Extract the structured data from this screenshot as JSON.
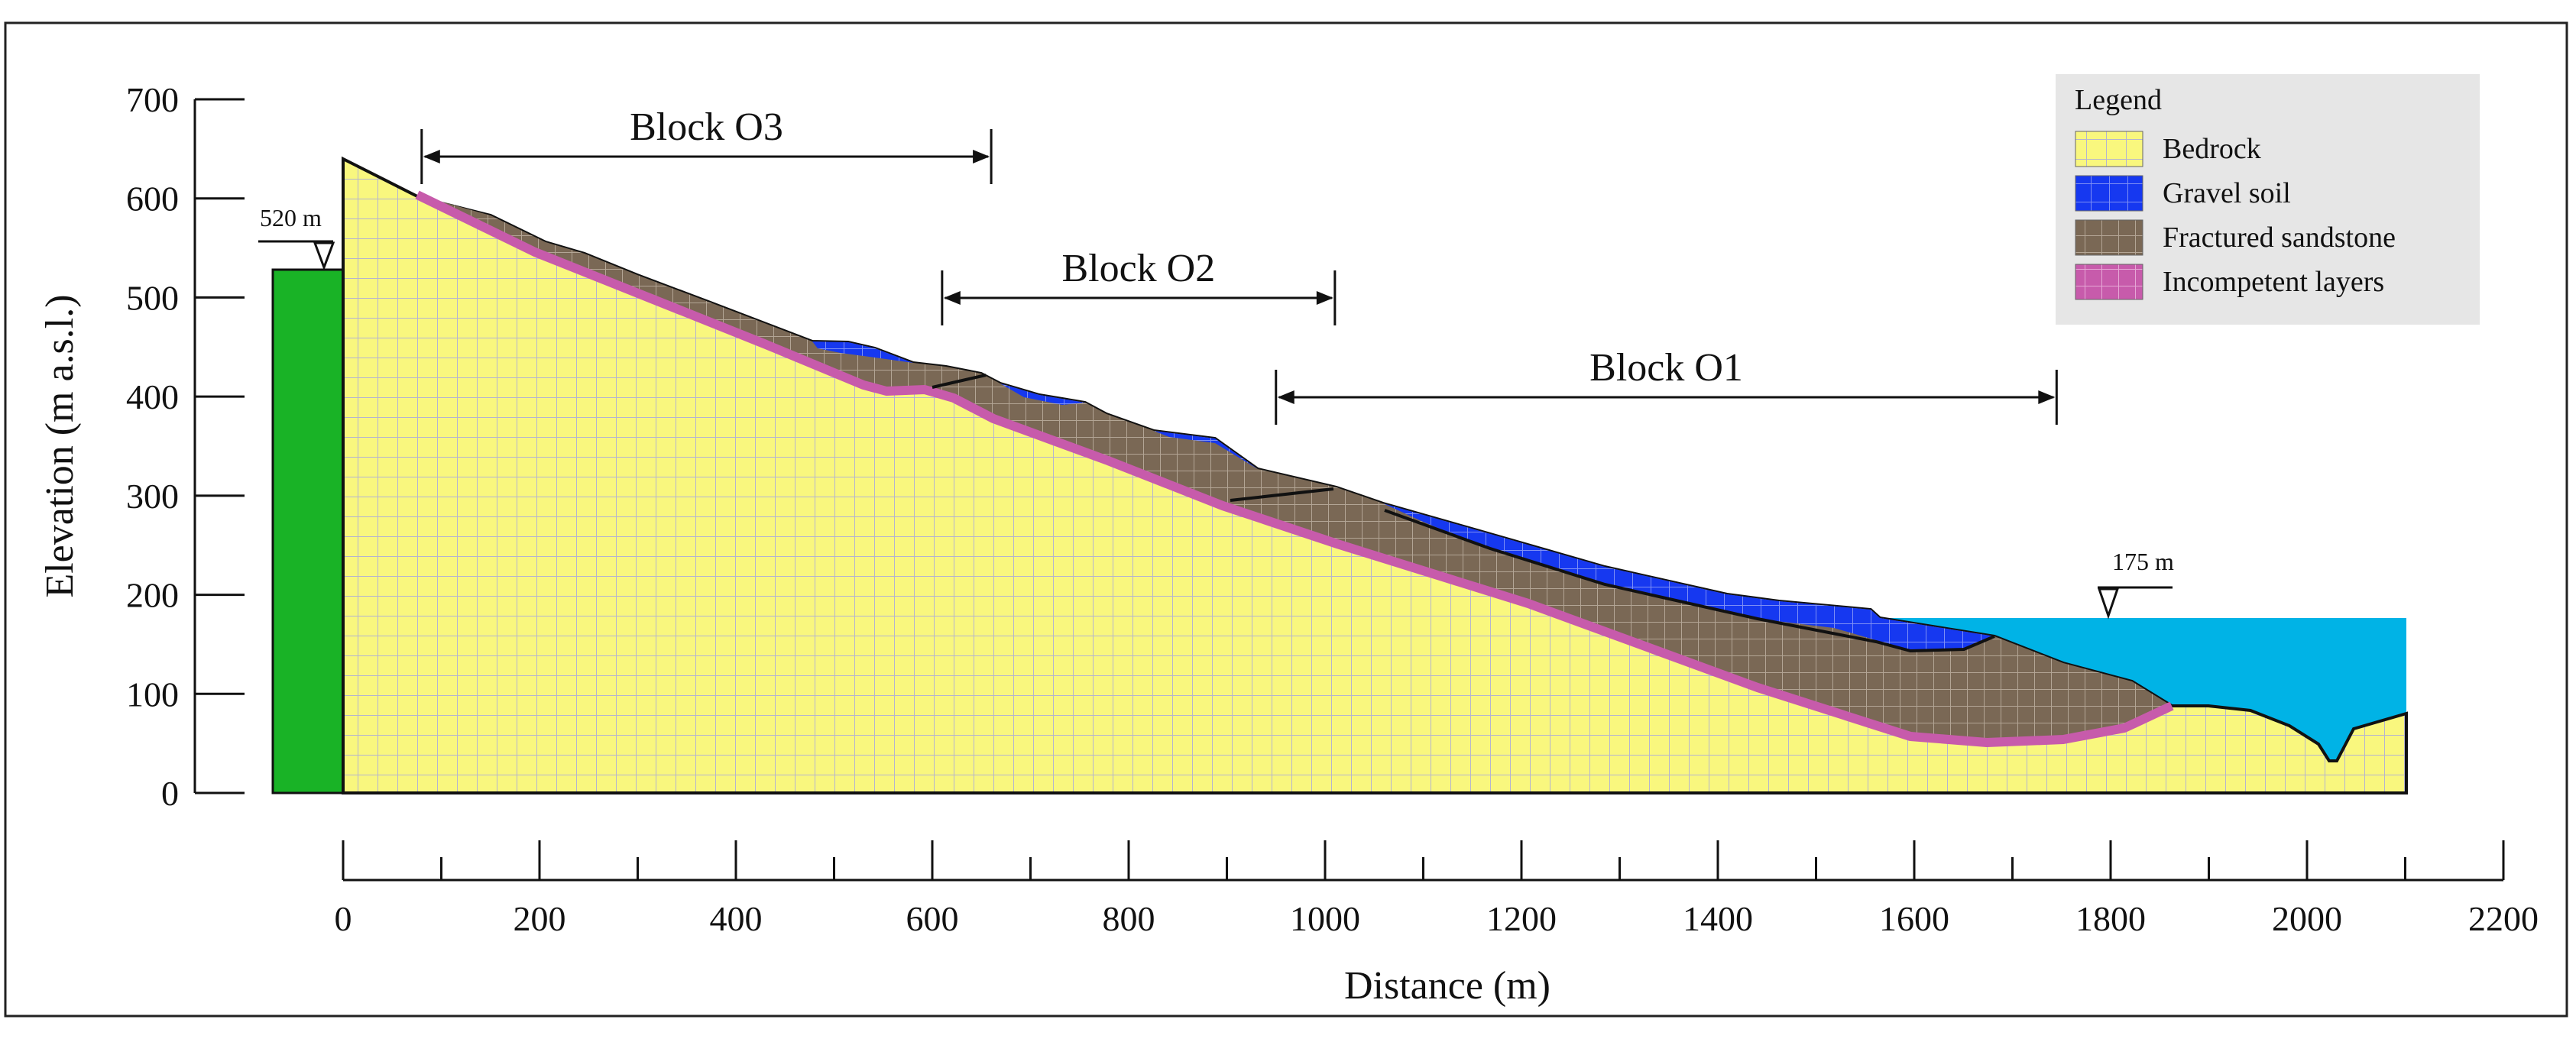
{
  "figure": {
    "y_axis_title": "Elevation (m a.s.l.)",
    "x_axis_title": "Distance (m)",
    "y_ticks": [
      "0",
      "100",
      "200",
      "300",
      "400",
      "500",
      "600",
      "700"
    ],
    "x_ticks": [
      "0",
      "200",
      "400",
      "600",
      "800",
      "1000",
      "1200",
      "1400",
      "1600",
      "1800",
      "2000",
      "2200"
    ],
    "water_level_left": "520 m",
    "water_level_right": "175 m",
    "blocks": [
      {
        "label": "Block O3",
        "from_m": 80,
        "to_m": 660
      },
      {
        "label": "Block O2",
        "from_m": 610,
        "to_m": 1010
      },
      {
        "label": "Block O1",
        "from_m": 950,
        "to_m": 1745
      }
    ],
    "legend": {
      "title": "Legend",
      "items": [
        {
          "label": "Bedrock",
          "color": "#f9f77e"
        },
        {
          "label": "Gravel soil",
          "color": "#1638f0"
        },
        {
          "label": "Fractured sandstone",
          "color": "#7a6855"
        },
        {
          "label": "Incompetent layers",
          "color": "#c75bab"
        }
      ]
    }
  },
  "colors": {
    "bedrock": "#f9f77e",
    "mesh_line": "#b4b4cf",
    "gravel_soil": "#1638f0",
    "fractured_sandstone": "#7a6855",
    "incompetent_layers": "#c75bab",
    "reservoir_water": "#00b3e6",
    "left_water_column": "#19b326",
    "legend_background": "#e6e6e6"
  }
}
